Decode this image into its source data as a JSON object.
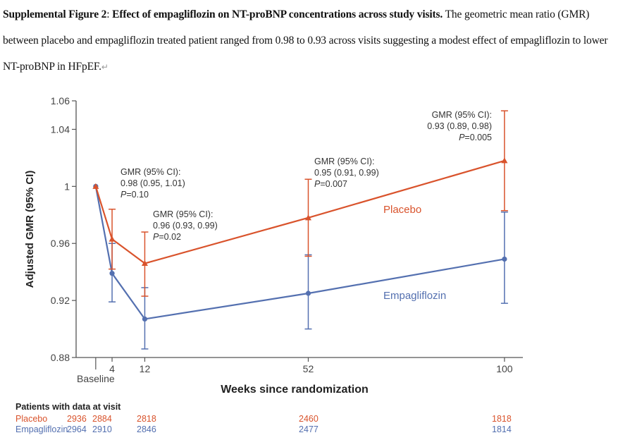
{
  "caption": {
    "figure_label": "Supplemental Figure 2",
    "bold_title": "Effect of empagliflozin on NT-proBNP concentrations across study visits.",
    "body": "The geometric mean ratio (GMR) between placebo and empagliflozin treated patient ranged from 0.98 to 0.93 across visits suggesting a modest effect of empagliflozin to lower NT-proBNP in HFpEF.",
    "return_mark": "↵"
  },
  "colors": {
    "placebo": "#D9532C",
    "empagliflozin": "#5470B0",
    "axis": "#555555",
    "text": "#333333"
  },
  "chart_data": {
    "type": "line",
    "title": "",
    "xlabel": "Weeks since randomization",
    "ylabel": "Adjusted GMR (95% CI)",
    "xlim": [
      -4.8,
      104.5
    ],
    "ylim": [
      0.88,
      1.06
    ],
    "x": [
      0,
      4,
      12,
      52,
      100
    ],
    "x_tick_labels": [
      {
        "x": 0,
        "label": "Baseline"
      },
      {
        "x": 4,
        "label": "4"
      },
      {
        "x": 12,
        "label": "12"
      },
      {
        "x": 52,
        "label": "52"
      },
      {
        "x": 100,
        "label": "100"
      }
    ],
    "y_ticks": [
      {
        "value": 1.06,
        "label": "1.06"
      },
      {
        "value": 1.04,
        "label": "1.04"
      },
      {
        "value": 1.0,
        "label": "1"
      },
      {
        "value": 0.96,
        "label": "0.96"
      },
      {
        "value": 0.92,
        "label": "0.92"
      },
      {
        "value": 0.88,
        "label": "0.88"
      }
    ],
    "grid": false,
    "series": [
      {
        "name": "Placebo",
        "marker": "triangle",
        "values": [
          1.0,
          0.963,
          0.946,
          0.978,
          1.018
        ],
        "ci_lower": [
          null,
          0.942,
          0.923,
          0.951,
          0.983
        ],
        "ci_upper": [
          null,
          0.984,
          0.968,
          1.005,
          1.053
        ]
      },
      {
        "name": "Empagliflozin",
        "marker": "circle",
        "values": [
          1.0,
          0.939,
          0.907,
          0.925,
          0.949
        ],
        "ci_lower": [
          null,
          0.919,
          0.886,
          0.9,
          0.918
        ],
        "ci_upper": [
          null,
          0.96,
          0.929,
          0.952,
          0.982
        ]
      }
    ],
    "legend": [
      {
        "name": "Placebo",
        "placement": "inline-upper-right"
      },
      {
        "name": "Empagliflozin",
        "placement": "inline-lower-right"
      }
    ],
    "annotations": [
      {
        "x": 4,
        "lines": [
          "GMR (95% CI):",
          "0.98 (0.95, 1.01)",
          "P=0.10"
        ]
      },
      {
        "x": 12,
        "lines": [
          "GMR (95% CI):",
          "0.96 (0.93, 0.99)",
          "P=0.02"
        ]
      },
      {
        "x": 52,
        "lines": [
          "GMR (95% CI):",
          "0.95 (0.91, 0.99)",
          "P=0.007"
        ]
      },
      {
        "x": 100,
        "lines": [
          "GMR (95% CI):",
          "0.93 (0.89, 0.98)",
          "P=0.005"
        ]
      }
    ],
    "patients_table": {
      "title": "Patients with data at visit",
      "visits": [
        "Baseline",
        "4",
        "12",
        "52",
        "100"
      ],
      "rows": [
        {
          "name": "Placebo",
          "counts": [
            "2936",
            "2884",
            "2818",
            "2460",
            "1818"
          ]
        },
        {
          "name": "Empagliflozin",
          "counts": [
            "2964",
            "2910",
            "2846",
            "2477",
            "1814"
          ]
        }
      ]
    }
  }
}
